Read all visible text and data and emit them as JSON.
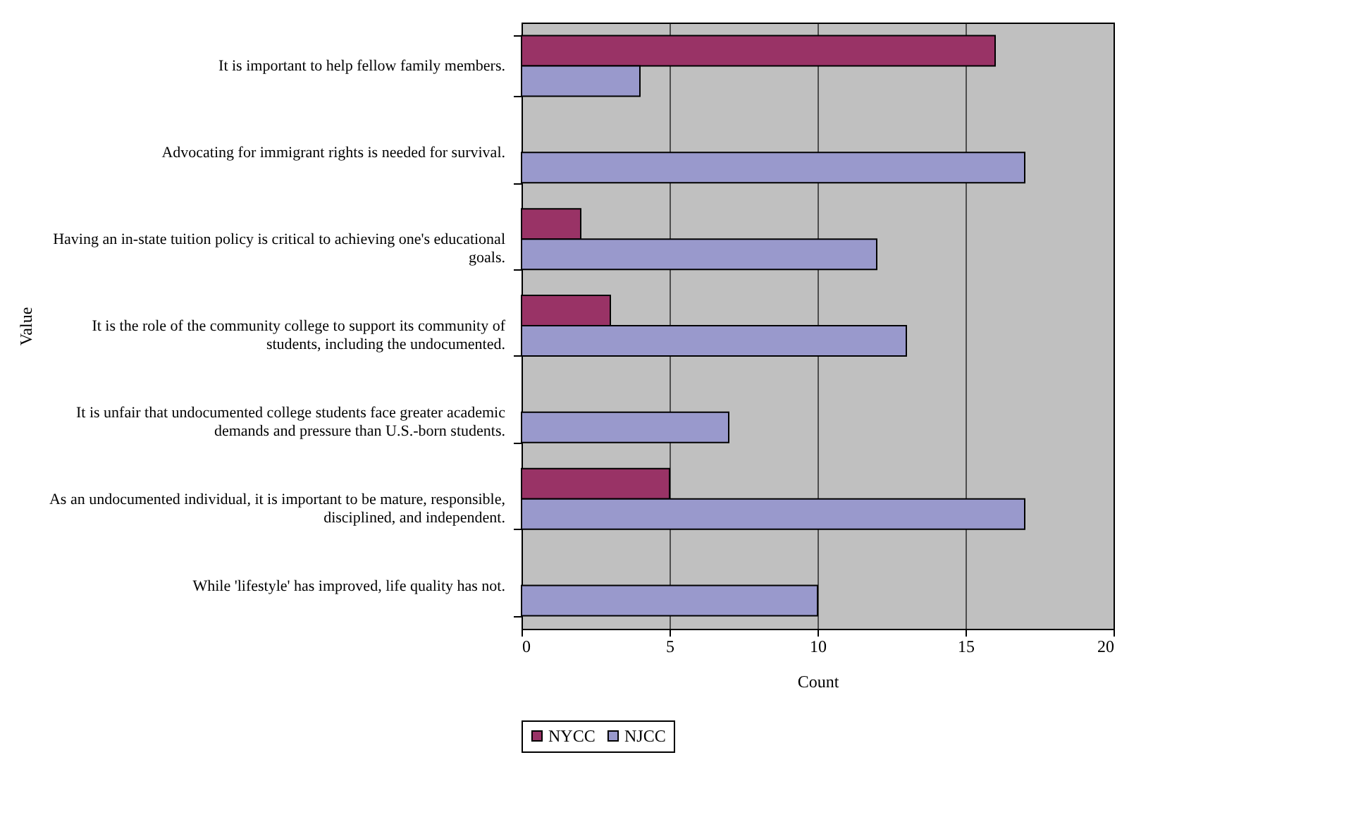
{
  "chart_data": {
    "type": "bar",
    "orientation": "horizontal",
    "xlabel": "Count",
    "ylabel": "Value",
    "categories": [
      "It is important to help fellow family members.",
      "Advocating for immigrant rights is needed for survival.",
      "Having an in-state tuition policy is critical to achieving one's educational goals.",
      "It is the role of the community college to support its community of students, including the undocumented.",
      "It is unfair that undocumented college students face greater academic demands and pressure than U.S.-born students.",
      "As an undocumented individual, it is important to be mature, responsible, disciplined, and independent.",
      "While 'lifestyle' has improved, life quality has not."
    ],
    "series": [
      {
        "name": "NYCC",
        "color": "#993366",
        "values": [
          16,
          null,
          2,
          3,
          null,
          5,
          null
        ]
      },
      {
        "name": "NJCC",
        "color": "#9999cc",
        "values": [
          4,
          17,
          12,
          13,
          7,
          17,
          10
        ]
      }
    ],
    "xlim": [
      0,
      20
    ],
    "xticks": [
      0,
      5,
      10,
      15,
      20
    ],
    "grid": "x",
    "legend": "bottom"
  }
}
